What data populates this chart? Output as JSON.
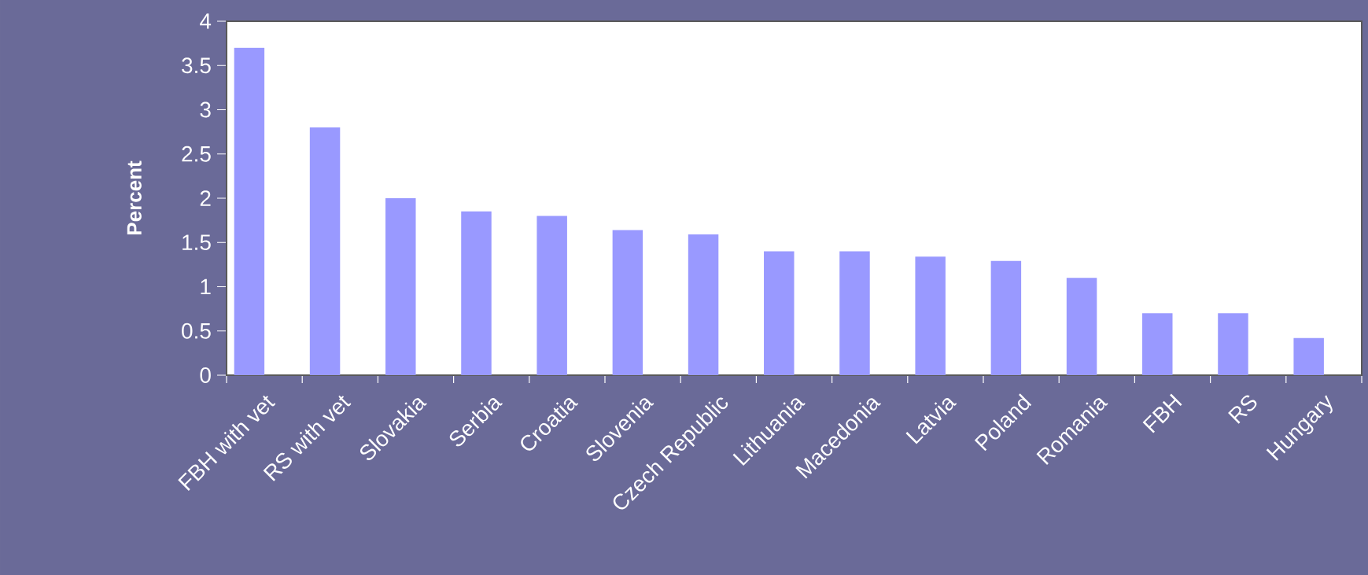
{
  "chart_data": {
    "type": "bar",
    "ylabel": "Percent",
    "categories": [
      "FBH with vet",
      "RS with vet",
      "Slovakia",
      "Serbia",
      "Croatia",
      "Slovenia",
      "Czech Republic",
      "Lithuania",
      "Macedonia",
      "Latvia",
      "Poland",
      "Romania",
      "FBH",
      "RS",
      "Hungary"
    ],
    "values": [
      3.7,
      2.8,
      2.0,
      1.85,
      1.8,
      1.64,
      1.59,
      1.4,
      1.4,
      1.34,
      1.29,
      1.1,
      0.7,
      0.7,
      0.42
    ],
    "color": "#9999ff",
    "ylim": [
      0,
      4
    ],
    "yticks": [
      0,
      0.5,
      1,
      1.5,
      2,
      2.5,
      3,
      3.5,
      4
    ],
    "grid": false
  }
}
